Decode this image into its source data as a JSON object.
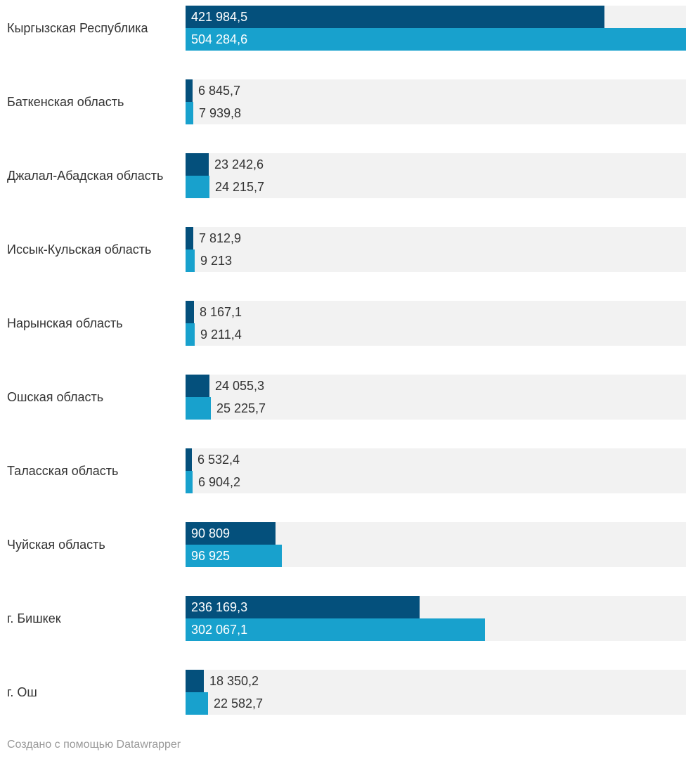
{
  "chart_data": {
    "type": "bar",
    "orientation": "horizontal",
    "title": "",
    "xlabel": "",
    "ylabel": "",
    "categories": [
      "Кыргызская Республика",
      "Баткенская область",
      "Джалал-Абадская область",
      "Иссык-Кульская область",
      "Нарынская область",
      "Ошская область",
      "Таласская область",
      "Чуйская область",
      "г. Бишкек",
      "г. Ош"
    ],
    "series": [
      {
        "name": "series-1",
        "color": "#04507c",
        "values": [
          421984.5,
          6845.7,
          23242.6,
          7812.9,
          8167.1,
          24055.3,
          6532.4,
          90809,
          236169.3,
          18350.2
        ],
        "labels": [
          "421 984,5",
          "6 845,7",
          "23 242,6",
          "7 812,9",
          "8 167,1",
          "24 055,3",
          "6 532,4",
          "90 809",
          "236 169,3",
          "18 350,2"
        ]
      },
      {
        "name": "series-2",
        "color": "#18a1cd",
        "values": [
          504284.6,
          7939.8,
          24215.7,
          9213,
          9211.4,
          25225.7,
          6904.2,
          96925,
          302067.1,
          22582.7
        ],
        "labels": [
          "504 284,6",
          "7 939,8",
          "24 215,7",
          "9 213",
          "9 211,4",
          "25 225,7",
          "6 904,2",
          "96 925",
          "302 067,1",
          "22 582,7"
        ]
      }
    ],
    "xlim": [
      0,
      504284.6
    ],
    "grid": false,
    "legend": "none",
    "background_track_color": "#f2f2f2"
  },
  "footer": {
    "credit": "Создано с помощью Datawrapper"
  }
}
